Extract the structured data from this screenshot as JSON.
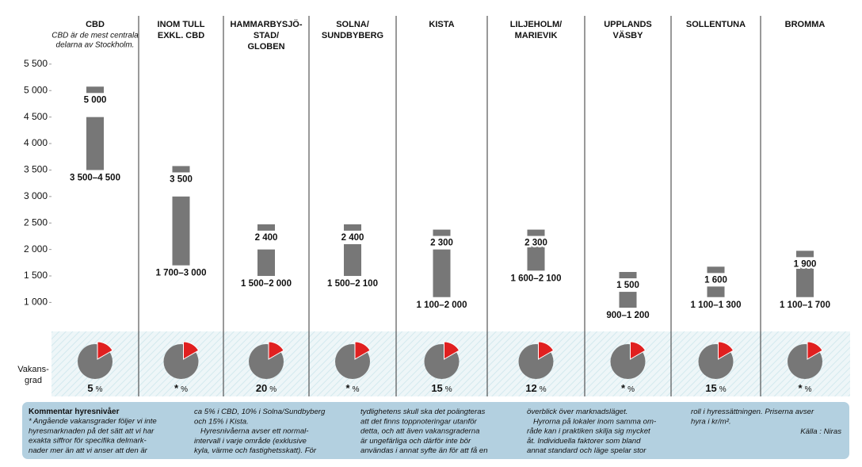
{
  "chart_data": {
    "type": "range_bar",
    "ylim": [
      650,
      5700
    ],
    "yticks": [
      {
        "value": 1000,
        "label": "1 000"
      },
      {
        "value": 1500,
        "label": "1 500"
      },
      {
        "value": 2000,
        "label": "2 000"
      },
      {
        "value": 2500,
        "label": "2 500"
      },
      {
        "value": 3000,
        "label": "3 000"
      },
      {
        "value": 3500,
        "label": "3 500"
      },
      {
        "value": 4000,
        "label": "4 000"
      },
      {
        "value": 4500,
        "label": "4 500"
      },
      {
        "value": 5000,
        "label": "5 000"
      },
      {
        "value": 5500,
        "label": "5 500"
      }
    ],
    "bar_color": "#777777",
    "pie_label": [
      "Vakans-",
      "grad"
    ],
    "vacancy_unit": "%",
    "regions": [
      {
        "name_lines": [
          "CBD"
        ],
        "subtitle_lines": [
          "CBD är de mest centrala",
          "delarna av Stockholm."
        ],
        "top": 5000,
        "top_label": "5 000",
        "range": [
          3500,
          4500
        ],
        "range_label": "3 500–4 500",
        "vacancy": "5"
      },
      {
        "name_lines": [
          "INOM TULL",
          "EXKL. CBD"
        ],
        "top": 3500,
        "top_label": "3 500",
        "range": [
          1700,
          3000
        ],
        "range_label": "1 700–3 000",
        "vacancy": "*"
      },
      {
        "name_lines": [
          "HAMMARBYSJÖ-",
          "STAD/",
          "GLOBEN"
        ],
        "top": 2400,
        "top_label": "2 400",
        "range": [
          1500,
          2000
        ],
        "range_label": "1 500–2 000",
        "vacancy": "20"
      },
      {
        "name_lines": [
          "SOLNA/",
          "SUNDBYBERG"
        ],
        "top": 2400,
        "top_label": "2 400",
        "range": [
          1500,
          2100
        ],
        "range_label": "1 500–2 100",
        "vacancy": "*"
      },
      {
        "name_lines": [
          "KISTA"
        ],
        "top": 2300,
        "top_label": "2 300",
        "range": [
          1100,
          2000
        ],
        "range_label": "1 100–2 000",
        "vacancy": "15"
      },
      {
        "name_lines": [
          "LILJEHOLM/",
          "MARIEVIK"
        ],
        "top": 2300,
        "top_label": "2 300",
        "range": [
          1600,
          2100
        ],
        "range_label": "1 600–2 100",
        "vacancy": "12"
      },
      {
        "name_lines": [
          "UPPLANDS",
          "VÄSBY"
        ],
        "top": 1500,
        "top_label": "1 500",
        "range": [
          900,
          1200
        ],
        "range_label": "900–1 200",
        "vacancy": "*"
      },
      {
        "name_lines": [
          "SOLLENTUNA"
        ],
        "top": 1600,
        "top_label": "1 600",
        "range": [
          1100,
          1300
        ],
        "range_label": "1 100–1 300",
        "vacancy": "15"
      },
      {
        "name_lines": [
          "BROMMA"
        ],
        "top": 1900,
        "top_label": "1 900",
        "range": [
          1100,
          1700
        ],
        "range_label": "1 100–1 700",
        "vacancy": "*"
      }
    ],
    "comment": {
      "heading": "Kommentar hyresnivåer",
      "columns": [
        [
          "* Angående vakansgrader följer vi inte",
          "hyresmarknaden på det sätt att vi har",
          "exakta siffror för specifika delmark-",
          "nader mer än att vi anser att den är"
        ],
        [
          "ca 5% i CBD, 10% i Solna/Sundbyberg",
          "och 15% i Kista.",
          "   Hyresnivåerna avser ett normal-",
          "intervall i varje område (exklusive",
          "kyla, värme och fastighetsskatt). För"
        ],
        [
          "tydlighetens skull ska det poängteras",
          "att det finns toppnoteringar utanför",
          "detta, och att även vakansgraderna",
          "är ungefärliga och därför inte bör",
          "användas i annat syfte än för att få en"
        ],
        [
          "överblick över marknadsläget.",
          "   Hyrorna på lokaler inom samma om-",
          "råde kan i praktiken skilja sig mycket",
          "åt. Individuella faktorer som bland",
          "annat standard och läge spelar stor"
        ],
        [
          "roll i hyressättningen. Priserna avser",
          "hyra i kr/m²."
        ]
      ],
      "source": "Källa : Niras"
    }
  }
}
